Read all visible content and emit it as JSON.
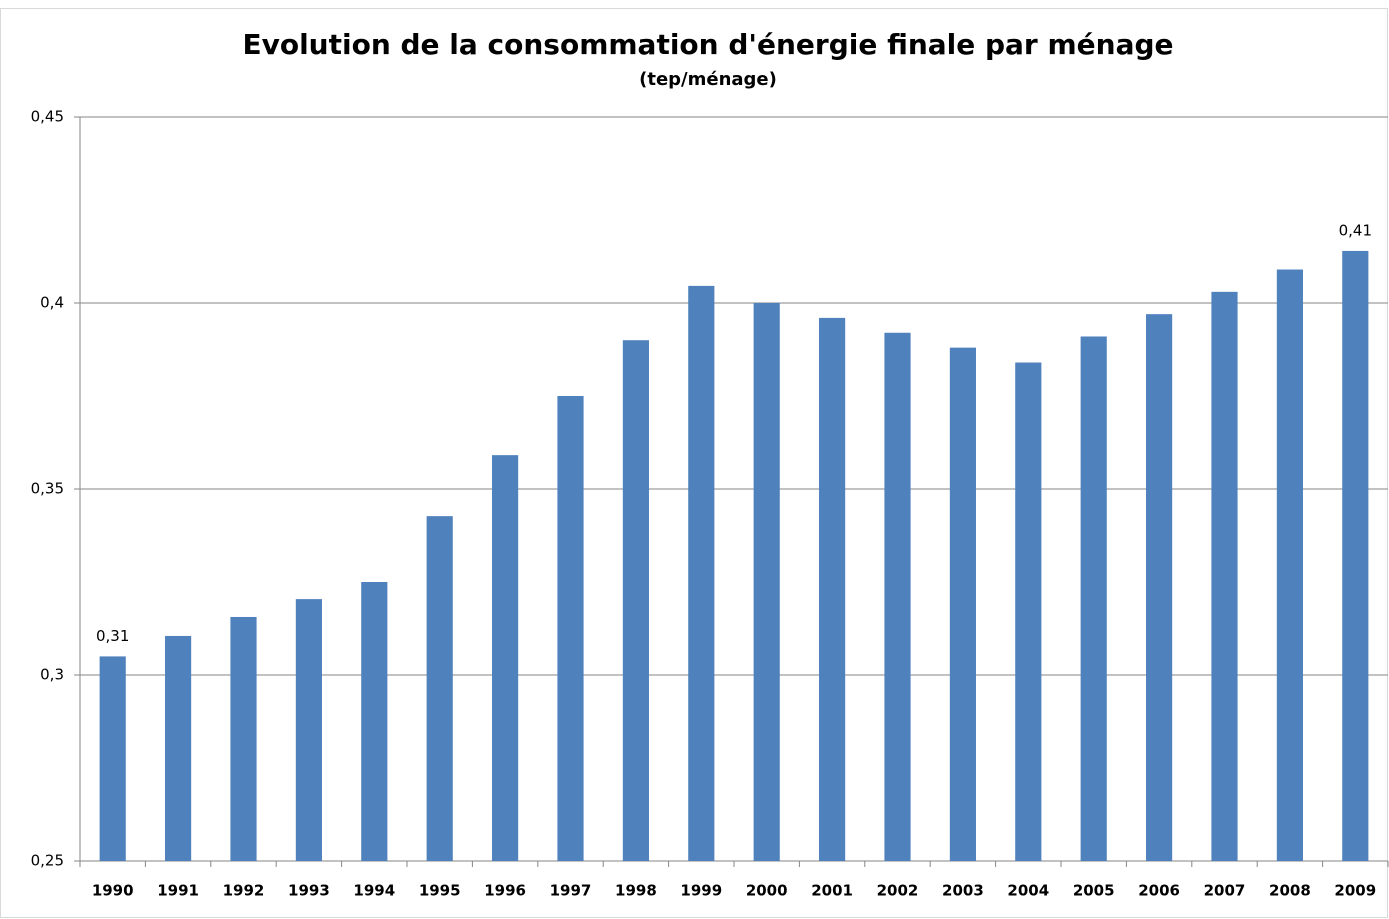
{
  "chart_data": {
    "type": "bar",
    "title": "Evolution de la consommation d'énergie finale par ménage",
    "subtitle": "(tep/ménage)",
    "categories": [
      "1990",
      "1991",
      "1992",
      "1993",
      "1994",
      "1995",
      "1996",
      "1997",
      "1998",
      "1999",
      "2000",
      "2001",
      "2002",
      "2003",
      "2004",
      "2005",
      "2006",
      "2007",
      "2008",
      "2009"
    ],
    "values": [
      0.305,
      0.3105,
      0.3156,
      0.3204,
      0.325,
      0.3427,
      0.3591,
      0.375,
      0.39,
      0.4046,
      0.4,
      0.396,
      0.392,
      0.388,
      0.384,
      0.391,
      0.397,
      0.403,
      0.409,
      0.414
    ],
    "value_labels": [
      "0,31",
      null,
      null,
      null,
      null,
      null,
      null,
      null,
      null,
      null,
      null,
      null,
      null,
      null,
      null,
      null,
      null,
      null,
      null,
      "0,41"
    ],
    "color": "#4f81bd",
    "ylim": [
      0.25,
      0.45
    ],
    "yticks": [
      {
        "value": 0.25,
        "label": "0,25"
      },
      {
        "value": 0.3,
        "label": "0,3"
      },
      {
        "value": 0.35,
        "label": "0,35"
      },
      {
        "value": 0.4,
        "label": "0,4"
      },
      {
        "value": 0.45,
        "label": "0,45"
      }
    ],
    "grid": true
  }
}
